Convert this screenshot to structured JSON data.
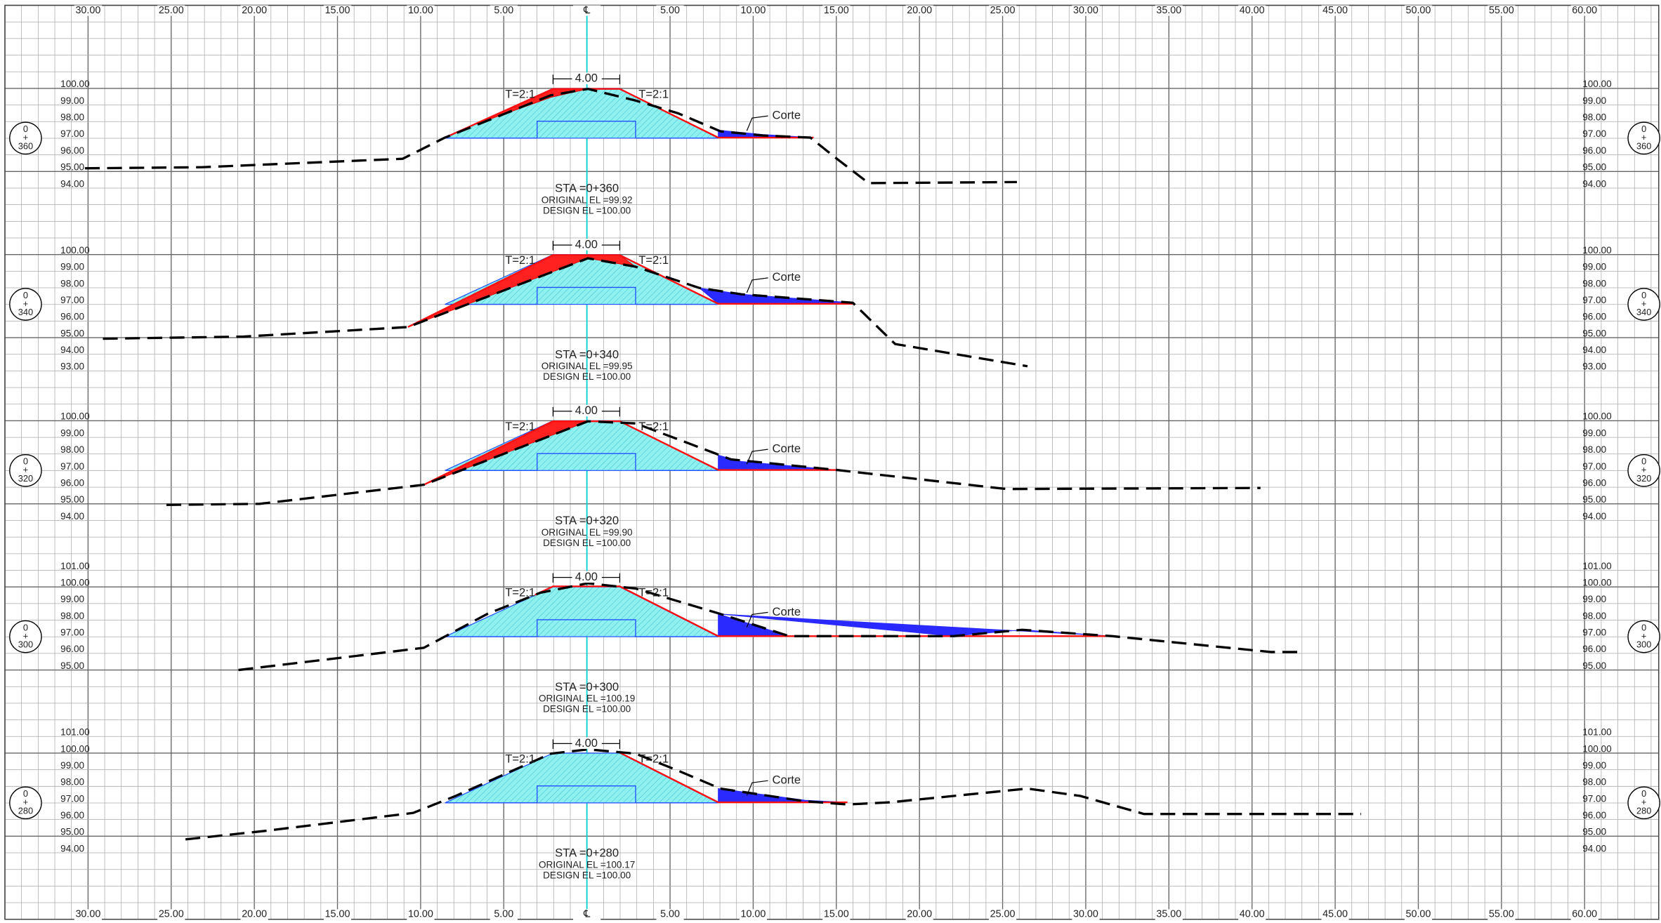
{
  "offset_labels": [
    "30.00",
    "25.00",
    "20.00",
    "15.00",
    "10.00",
    "5.00",
    "℄",
    "5.00",
    "10.00",
    "15.00",
    "20.00",
    "25.00",
    "30.00",
    "35.00",
    "40.00",
    "45.00",
    "50.00",
    "55.00",
    "60.00"
  ],
  "sections": [
    {
      "station_top": "0",
      "station_plus": "+",
      "station_num": "360",
      "elevations": [
        "100.00",
        "99.00",
        "98.00",
        "97.00",
        "96.00",
        "95.00",
        "94.00"
      ],
      "sta": "STA =0+360",
      "original_el": "ORIGINAL EL =99.92",
      "design_el": "DESIGN EL =100.00",
      "width_label": "4.00",
      "slope_left": "T=2:1",
      "slope_right": "T=2:1",
      "cut_label": "Corte"
    },
    {
      "station_top": "0",
      "station_plus": "+",
      "station_num": "340",
      "elevations": [
        "100.00",
        "99.00",
        "98.00",
        "97.00",
        "96.00",
        "95.00",
        "94.00",
        "93.00"
      ],
      "sta": "STA =0+340",
      "original_el": "ORIGINAL EL =99.95",
      "design_el": "DESIGN EL =100.00",
      "width_label": "4.00",
      "slope_left": "T=2:1",
      "slope_right": "T=2:1",
      "cut_label": "Corte"
    },
    {
      "station_top": "0",
      "station_plus": "+",
      "station_num": "320",
      "elevations": [
        "100.00",
        "99.00",
        "98.00",
        "97.00",
        "96.00",
        "95.00",
        "94.00"
      ],
      "sta": "STA =0+320",
      "original_el": "ORIGINAL EL =99.90",
      "design_el": "DESIGN EL =100.00",
      "width_label": "4.00",
      "slope_left": "T=2:1",
      "slope_right": "T=2:1",
      "cut_label": "Corte"
    },
    {
      "station_top": "0",
      "station_plus": "+",
      "station_num": "300",
      "elevations": [
        "101.00",
        "100.00",
        "99.00",
        "98.00",
        "97.00",
        "96.00",
        "95.00"
      ],
      "sta": "STA =0+300",
      "original_el": "ORIGINAL EL =100.19",
      "design_el": "DESIGN EL =100.00",
      "width_label": "4.00",
      "slope_left": "T=2:1",
      "slope_right": "T=2:1",
      "cut_label": "Corte"
    },
    {
      "station_top": "0",
      "station_plus": "+",
      "station_num": "280",
      "elevations": [
        "101.00",
        "100.00",
        "99.00",
        "98.00",
        "97.00",
        "96.00",
        "95.00",
        "94.00"
      ],
      "sta": "STA =0+280",
      "original_el": "ORIGINAL EL =100.17",
      "design_el": "DESIGN EL =100.00",
      "width_label": "4.00",
      "slope_left": "T=2:1",
      "slope_right": "T=2:1",
      "cut_label": "Corte"
    }
  ]
}
